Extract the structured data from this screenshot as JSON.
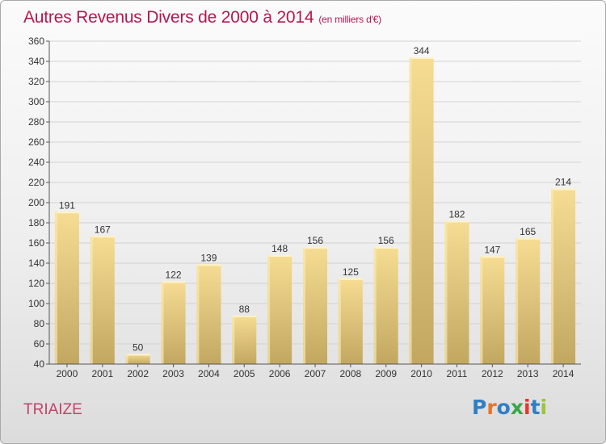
{
  "header": {
    "title": "Autres Revenus Divers de 2000 à 2014",
    "unit": "(en milliers d'€)"
  },
  "location": "TRIAIZE",
  "logo": {
    "text": "Proxiti",
    "colors": [
      "#2f7fc3",
      "#e8732a",
      "#2f7fc3",
      "#3aa648",
      "#e8372a",
      "#2f7fc3",
      "#9ac43a"
    ]
  },
  "chart_data": {
    "type": "bar",
    "categories": [
      "2000",
      "2001",
      "2002",
      "2003",
      "2004",
      "2005",
      "2006",
      "2007",
      "2008",
      "2009",
      "2010",
      "2011",
      "2012",
      "2013",
      "2014"
    ],
    "values": [
      191,
      167,
      50,
      122,
      139,
      88,
      148,
      156,
      125,
      156,
      344,
      182,
      147,
      165,
      214
    ],
    "ylim": [
      40,
      360
    ],
    "yticks": [
      40,
      60,
      80,
      100,
      120,
      140,
      160,
      180,
      200,
      220,
      240,
      260,
      280,
      300,
      320,
      340,
      360
    ],
    "grid": true,
    "bar_color": "#ebcf86"
  }
}
